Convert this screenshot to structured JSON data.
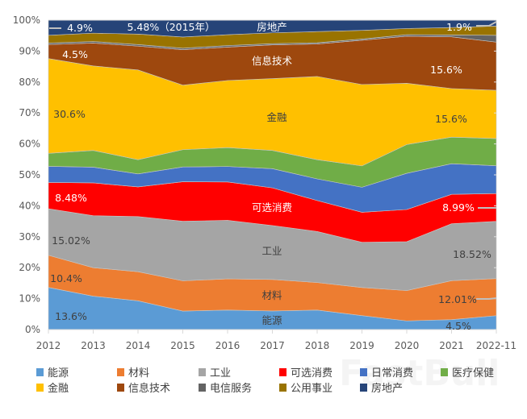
{
  "chart_data": {
    "type": "area",
    "stacked": true,
    "normalized": true,
    "categories": [
      "2012",
      "2013",
      "2014",
      "2015",
      "2016",
      "2017",
      "2018",
      "2019",
      "2020",
      "2021",
      "2022-11"
    ],
    "ylim": [
      0,
      100
    ],
    "y_ticks": [
      "0%",
      "10%",
      "20%",
      "30%",
      "40%",
      "50%",
      "60%",
      "70%",
      "80%",
      "90%",
      "100%"
    ],
    "grid": false,
    "legend_position": "bottom",
    "series": [
      {
        "name": "能源",
        "color": "#5b9bd5",
        "values": [
          13.6,
          10.8,
          9.3,
          6.0,
          6.3,
          6.0,
          6.3,
          4.5,
          2.8,
          3.2,
          4.5
        ]
      },
      {
        "name": "材料",
        "color": "#ed7d31",
        "values": [
          10.4,
          9.2,
          9.4,
          9.8,
          10.1,
          10.2,
          8.9,
          9.1,
          9.8,
          12.6,
          12.0
        ]
      },
      {
        "name": "工业",
        "color": "#a5a5a5",
        "values": [
          15.0,
          16.8,
          17.8,
          19.3,
          18.9,
          17.4,
          16.5,
          14.6,
          15.8,
          18.4,
          18.5
        ]
      },
      {
        "name": "可选消费",
        "color": "#ff0000",
        "values": [
          8.5,
          10.6,
          9.6,
          12.8,
          12.4,
          12.2,
          10.0,
          9.7,
          10.4,
          9.5,
          9.0
        ]
      },
      {
        "name": "日常消费",
        "color": "#4472c4",
        "values": [
          5.2,
          5.1,
          4.2,
          4.8,
          5.0,
          6.2,
          7.0,
          8.1,
          11.7,
          9.9,
          9.0
        ]
      },
      {
        "name": "医疗保健",
        "color": "#70ad47",
        "values": [
          4.2,
          5.4,
          4.6,
          5.6,
          6.1,
          5.9,
          6.2,
          6.9,
          9.3,
          8.6,
          8.8
        ]
      },
      {
        "name": "金融",
        "color": "#ffc000",
        "values": [
          30.6,
          27.3,
          29.0,
          20.9,
          21.7,
          23.2,
          26.9,
          26.3,
          19.8,
          15.7,
          15.6
        ]
      },
      {
        "name": "信息技术",
        "color": "#9e480e",
        "values": [
          4.5,
          7.4,
          7.7,
          11.5,
          10.8,
          10.9,
          10.5,
          14.3,
          15.2,
          16.7,
          15.6
        ]
      },
      {
        "name": "电信服务",
        "color": "#636363",
        "values": [
          0.5,
          0.5,
          0.5,
          0.5,
          0.5,
          0.4,
          0.4,
          0.4,
          0.5,
          0.6,
          2.2
        ]
      },
      {
        "name": "公用事业",
        "color": "#997300",
        "values": [
          2.5,
          2.7,
          3.4,
          3.6,
          3.5,
          3.5,
          3.6,
          2.8,
          2.0,
          2.4,
          3.0
        ]
      },
      {
        "name": "房地产",
        "color": "#264478",
        "values": [
          4.9,
          4.2,
          4.5,
          5.48,
          4.7,
          4.1,
          3.7,
          3.3,
          2.7,
          2.4,
          1.9
        ]
      }
    ],
    "annotations": {
      "re_2012": "4.9%",
      "re_2015": "5.48%（2015年）",
      "re_name": "房地产",
      "re_2022": "1.9%",
      "it_2012": "4.5%",
      "it_name": "信息技术",
      "it_2022": "15.6%",
      "fin_2012": "30.6%",
      "fin_name": "金融",
      "fin_2022": "15.6%",
      "cd_2012": "8.48%",
      "cd_name": "可选消费",
      "cd_2022": "8.99%",
      "ind_2012": "15.02%",
      "ind_name": "工业",
      "ind_2022": "18.52%",
      "mat_2012": "10.4%",
      "mat_name": "材料",
      "mat_2022": "12.01%",
      "en_2012": "13.6%",
      "en_name": "能源",
      "en_2022": "4.5%"
    }
  },
  "watermark": "FastBull"
}
